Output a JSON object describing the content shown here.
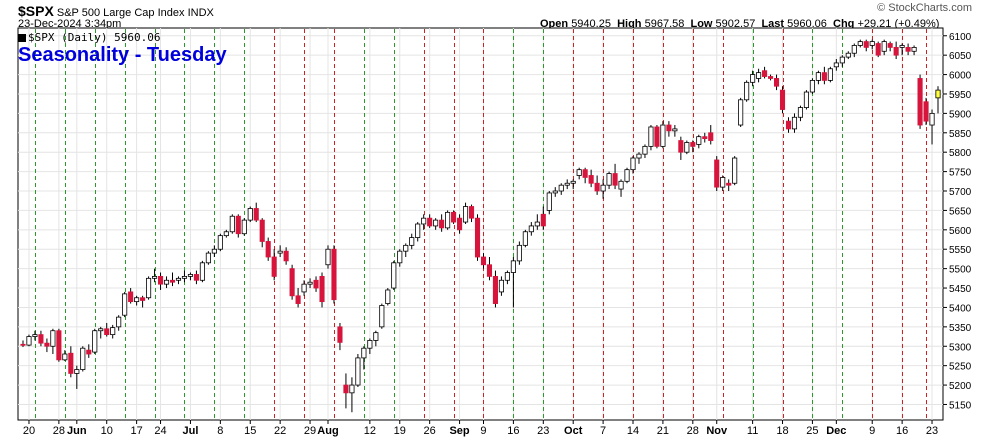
{
  "header": {
    "symbol": "$SPX",
    "name": "S&P 500 Large Cap Index",
    "exchange": "INDX",
    "datetime": "23-Dec-2024 3:34pm",
    "brand": "© StockCharts.com",
    "ohlc": {
      "open_label": "Open",
      "open": "5940.25",
      "high_label": "High",
      "high": "5967.58",
      "low_label": "Low",
      "low": "5902.57",
      "last_label": "Last",
      "last": "5960.06",
      "chg_label": "Chg",
      "chg": "+29.21 (+0.49%)"
    }
  },
  "legend": {
    "text": "$SPX (Daily) 5960.06"
  },
  "overlay_title": "Seasonality - Tuesday",
  "colors": {
    "up": "#ffffff",
    "down": "#d6143c",
    "last": "#ffff40",
    "green_line": "#2a9a2a",
    "red_line": "#cc2222",
    "grid": "#e4e4e4"
  },
  "chart_data": {
    "type": "candlestick",
    "title": "Seasonality - Tuesday",
    "ylim": [
      5110,
      6120
    ],
    "y_ticks": [
      5150,
      5200,
      5250,
      5300,
      5350,
      5400,
      5450,
      5500,
      5550,
      5600,
      5650,
      5700,
      5750,
      5800,
      5850,
      5900,
      5950,
      6000,
      6050,
      6100
    ],
    "x_ticks": [
      {
        "label": "20",
        "i": 1
      },
      {
        "label": "28",
        "i": 6
      },
      {
        "label": "Jun",
        "i": 9
      },
      {
        "label": "10",
        "i": 14
      },
      {
        "label": "17",
        "i": 19
      },
      {
        "label": "24",
        "i": 23
      },
      {
        "label": "Jul",
        "i": 28
      },
      {
        "label": "8",
        "i": 33
      },
      {
        "label": "15",
        "i": 38
      },
      {
        "label": "22",
        "i": 43
      },
      {
        "label": "29",
        "i": 48
      },
      {
        "label": "Aug",
        "i": 51
      },
      {
        "label": "12",
        "i": 58
      },
      {
        "label": "19",
        "i": 63
      },
      {
        "label": "26",
        "i": 68
      },
      {
        "label": "Sep",
        "i": 73
      },
      {
        "label": "9",
        "i": 77
      },
      {
        "label": "16",
        "i": 82
      },
      {
        "label": "23",
        "i": 87
      },
      {
        "label": "Oct",
        "i": 92
      },
      {
        "label": "7",
        "i": 97
      },
      {
        "label": "14",
        "i": 102
      },
      {
        "label": "21",
        "i": 107
      },
      {
        "label": "28",
        "i": 112
      },
      {
        "label": "Nov",
        "i": 116
      },
      {
        "label": "11",
        "i": 122
      },
      {
        "label": "18",
        "i": 127
      },
      {
        "label": "25",
        "i": 132
      },
      {
        "label": "Dec",
        "i": 136
      },
      {
        "label": "9",
        "i": 142
      },
      {
        "label": "16",
        "i": 147
      },
      {
        "label": "23",
        "i": 152
      }
    ],
    "tuesday_lines": [
      {
        "i": 2,
        "c": "g"
      },
      {
        "i": 7,
        "c": "g"
      },
      {
        "i": 12,
        "c": "g"
      },
      {
        "i": 17,
        "c": "g"
      },
      {
        "i": 22,
        "c": "g"
      },
      {
        "i": 27,
        "c": "g"
      },
      {
        "i": 32,
        "c": "g"
      },
      {
        "i": 37,
        "c": "g"
      },
      {
        "i": 42,
        "c": "r"
      },
      {
        "i": 47,
        "c": "r"
      },
      {
        "i": 52,
        "c": "r"
      },
      {
        "i": 57,
        "c": "g"
      },
      {
        "i": 62,
        "c": "g"
      },
      {
        "i": 67,
        "c": "r"
      },
      {
        "i": 72,
        "c": "r"
      },
      {
        "i": 77,
        "c": "r"
      },
      {
        "i": 82,
        "c": "g"
      },
      {
        "i": 87,
        "c": "g"
      },
      {
        "i": 92,
        "c": "r"
      },
      {
        "i": 97,
        "c": "r"
      },
      {
        "i": 102,
        "c": "r"
      },
      {
        "i": 107,
        "c": "r"
      },
      {
        "i": 112,
        "c": "r"
      },
      {
        "i": 117,
        "c": "r"
      },
      {
        "i": 122,
        "c": "g"
      },
      {
        "i": 127,
        "c": "r"
      },
      {
        "i": 132,
        "c": "g"
      },
      {
        "i": 137,
        "c": "g"
      },
      {
        "i": 142,
        "c": "r"
      },
      {
        "i": 147,
        "c": "r"
      },
      {
        "i": 151,
        "c": "r"
      }
    ],
    "ohlc": [
      [
        5305,
        5315,
        5298,
        5303
      ],
      [
        5303,
        5330,
        5300,
        5325
      ],
      [
        5325,
        5340,
        5315,
        5330
      ],
      [
        5330,
        5340,
        5300,
        5308
      ],
      [
        5308,
        5320,
        5285,
        5300
      ],
      [
        5300,
        5345,
        5280,
        5340
      ],
      [
        5340,
        5345,
        5260,
        5265
      ],
      [
        5265,
        5290,
        5262,
        5280
      ],
      [
        5282,
        5300,
        5220,
        5230
      ],
      [
        5230,
        5250,
        5190,
        5240
      ],
      [
        5240,
        5300,
        5235,
        5295
      ],
      [
        5290,
        5305,
        5270,
        5280
      ],
      [
        5285,
        5345,
        5280,
        5340
      ],
      [
        5340,
        5350,
        5320,
        5345
      ],
      [
        5345,
        5360,
        5325,
        5330
      ],
      [
        5330,
        5355,
        5320,
        5348
      ],
      [
        5350,
        5380,
        5340,
        5375
      ],
      [
        5380,
        5440,
        5375,
        5435
      ],
      [
        5440,
        5450,
        5410,
        5415
      ],
      [
        5415,
        5430,
        5405,
        5425
      ],
      [
        5425,
        5430,
        5400,
        5418
      ],
      [
        5425,
        5480,
        5420,
        5475
      ],
      [
        5475,
        5500,
        5465,
        5480
      ],
      [
        5480,
        5490,
        5445,
        5460
      ],
      [
        5460,
        5480,
        5450,
        5470
      ],
      [
        5470,
        5490,
        5455,
        5465
      ],
      [
        5470,
        5480,
        5460,
        5475
      ],
      [
        5475,
        5495,
        5465,
        5480
      ],
      [
        5480,
        5490,
        5470,
        5485
      ],
      [
        5485,
        5495,
        5460,
        5470
      ],
      [
        5470,
        5520,
        5465,
        5515
      ],
      [
        5515,
        5545,
        5510,
        5540
      ],
      [
        5540,
        5560,
        5530,
        5550
      ],
      [
        5550,
        5590,
        5545,
        5585
      ],
      [
        5585,
        5600,
        5580,
        5595
      ],
      [
        5595,
        5640,
        5590,
        5635
      ],
      [
        5635,
        5640,
        5580,
        5590
      ],
      [
        5590,
        5630,
        5585,
        5625
      ],
      [
        5625,
        5660,
        5620,
        5655
      ],
      [
        5655,
        5670,
        5620,
        5625
      ],
      [
        5625,
        5630,
        5555,
        5570
      ],
      [
        5570,
        5580,
        5520,
        5530
      ],
      [
        5530,
        5550,
        5470,
        5480
      ],
      [
        5540,
        5560,
        5530,
        5545
      ],
      [
        5545,
        5555,
        5510,
        5520
      ],
      [
        5500,
        5510,
        5420,
        5430
      ],
      [
        5430,
        5450,
        5400,
        5410
      ],
      [
        5440,
        5470,
        5430,
        5460
      ],
      [
        5460,
        5475,
        5450,
        5465
      ],
      [
        5470,
        5480,
        5440,
        5450
      ],
      [
        5480,
        5490,
        5400,
        5415
      ],
      [
        5510,
        5560,
        5500,
        5550
      ],
      [
        5550,
        5560,
        5410,
        5420
      ],
      [
        5350,
        5360,
        5290,
        5310
      ],
      [
        5200,
        5230,
        5140,
        5180
      ],
      [
        5180,
        5220,
        5130,
        5200
      ],
      [
        5200,
        5280,
        5195,
        5270
      ],
      [
        5270,
        5300,
        5240,
        5295
      ],
      [
        5295,
        5320,
        5280,
        5315
      ],
      [
        5315,
        5340,
        5300,
        5335
      ],
      [
        5350,
        5410,
        5345,
        5405
      ],
      [
        5410,
        5450,
        5405,
        5445
      ],
      [
        5450,
        5520,
        5445,
        5515
      ],
      [
        5515,
        5550,
        5505,
        5545
      ],
      [
        5545,
        5565,
        5530,
        5560
      ],
      [
        5560,
        5590,
        5550,
        5580
      ],
      [
        5580,
        5620,
        5570,
        5615
      ],
      [
        5615,
        5640,
        5600,
        5630
      ],
      [
        5630,
        5640,
        5605,
        5610
      ],
      [
        5610,
        5630,
        5600,
        5625
      ],
      [
        5625,
        5640,
        5595,
        5605
      ],
      [
        5605,
        5650,
        5600,
        5645
      ],
      [
        5645,
        5650,
        5615,
        5620
      ],
      [
        5630,
        5640,
        5590,
        5600
      ],
      [
        5620,
        5670,
        5615,
        5660
      ],
      [
        5660,
        5665,
        5620,
        5630
      ],
      [
        5630,
        5640,
        5520,
        5530
      ],
      [
        5530,
        5540,
        5500,
        5510
      ],
      [
        5510,
        5530,
        5470,
        5480
      ],
      [
        5480,
        5495,
        5400,
        5410
      ],
      [
        5440,
        5480,
        5430,
        5470
      ],
      [
        5470,
        5495,
        5460,
        5490
      ],
      [
        5490,
        5530,
        5400,
        5520
      ],
      [
        5520,
        5570,
        5510,
        5560
      ],
      [
        5560,
        5600,
        5555,
        5595
      ],
      [
        5595,
        5620,
        5585,
        5610
      ],
      [
        5610,
        5640,
        5600,
        5620
      ],
      [
        5640,
        5660,
        5600,
        5610
      ],
      [
        5650,
        5700,
        5640,
        5695
      ],
      [
        5695,
        5710,
        5685,
        5700
      ],
      [
        5700,
        5720,
        5690,
        5715
      ],
      [
        5715,
        5730,
        5705,
        5720
      ],
      [
        5720,
        5730,
        5705,
        5725
      ],
      [
        5740,
        5760,
        5730,
        5755
      ],
      [
        5755,
        5760,
        5720,
        5735
      ],
      [
        5740,
        5755,
        5710,
        5720
      ],
      [
        5720,
        5740,
        5690,
        5700
      ],
      [
        5700,
        5730,
        5680,
        5715
      ],
      [
        5715,
        5750,
        5705,
        5745
      ],
      [
        5745,
        5770,
        5705,
        5715
      ],
      [
        5705,
        5730,
        5685,
        5725
      ],
      [
        5725,
        5760,
        5720,
        5755
      ],
      [
        5755,
        5790,
        5745,
        5785
      ],
      [
        5785,
        5800,
        5770,
        5795
      ],
      [
        5795,
        5820,
        5785,
        5815
      ],
      [
        5815,
        5870,
        5805,
        5865
      ],
      [
        5865,
        5870,
        5810,
        5815
      ],
      [
        5815,
        5880,
        5810,
        5870
      ],
      [
        5870,
        5880,
        5840,
        5855
      ],
      [
        5855,
        5870,
        5840,
        5860
      ],
      [
        5830,
        5840,
        5780,
        5800
      ],
      [
        5800,
        5830,
        5795,
        5825
      ],
      [
        5825,
        5830,
        5800,
        5815
      ],
      [
        5820,
        5845,
        5810,
        5840
      ],
      [
        5840,
        5850,
        5825,
        5835
      ],
      [
        5850,
        5870,
        5820,
        5830
      ],
      [
        5780,
        5790,
        5700,
        5710
      ],
      [
        5710,
        5740,
        5700,
        5735
      ],
      [
        5720,
        5730,
        5700,
        5715
      ],
      [
        5720,
        5790,
        5715,
        5785
      ],
      [
        5870,
        5940,
        5865,
        5935
      ],
      [
        5935,
        5985,
        5930,
        5980
      ],
      [
        5980,
        6010,
        5970,
        6000
      ],
      [
        5990,
        6015,
        5980,
        6005
      ],
      [
        6010,
        6020,
        5990,
        5995
      ],
      [
        5995,
        6000,
        5985,
        5990
      ],
      [
        5990,
        6000,
        5960,
        5970
      ],
      [
        5960,
        5970,
        5900,
        5910
      ],
      [
        5880,
        5890,
        5850,
        5860
      ],
      [
        5860,
        5900,
        5850,
        5890
      ],
      [
        5890,
        5920,
        5880,
        5915
      ],
      [
        5915,
        5960,
        5910,
        5955
      ],
      [
        5955,
        5990,
        5950,
        5985
      ],
      [
        5985,
        6010,
        5975,
        6005
      ],
      [
        6005,
        6020,
        5975,
        5985
      ],
      [
        5985,
        6020,
        5980,
        6015
      ],
      [
        6020,
        6040,
        6010,
        6030
      ],
      [
        6030,
        6050,
        6020,
        6045
      ],
      [
        6045,
        6060,
        6040,
        6055
      ],
      [
        6055,
        6080,
        6045,
        6075
      ],
      [
        6075,
        6090,
        6070,
        6085
      ],
      [
        6085,
        6090,
        6060,
        6070
      ],
      [
        6075,
        6090,
        6065,
        6085
      ],
      [
        6080,
        6085,
        6045,
        6050
      ],
      [
        6060,
        6090,
        6050,
        6085
      ],
      [
        6080,
        6085,
        6060,
        6070
      ],
      [
        6070,
        6085,
        6040,
        6050
      ],
      [
        6070,
        6080,
        6050,
        6075
      ],
      [
        6070,
        6080,
        6050,
        6060
      ],
      [
        6060,
        6075,
        6050,
        6070
      ],
      [
        5990,
        6000,
        5860,
        5870
      ],
      [
        5930,
        5940,
        5870,
        5880
      ],
      [
        5870,
        5910,
        5820,
        5900
      ],
      [
        5940,
        5970,
        5900,
        5960
      ]
    ]
  }
}
